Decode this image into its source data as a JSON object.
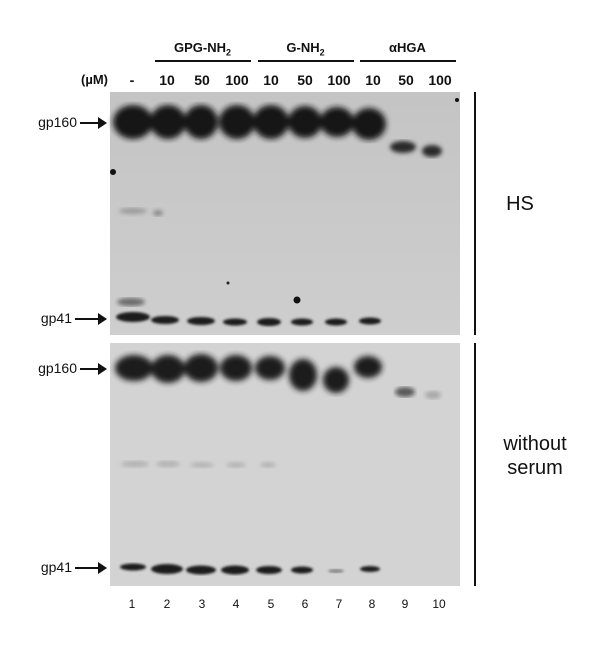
{
  "header": {
    "groups": [
      "GPG-NH2",
      "G-NH2",
      "αHGA"
    ],
    "unit": "(µM)",
    "concentrations": [
      "-",
      "10",
      "50",
      "100",
      "10",
      "50",
      "100",
      "10",
      "50",
      "100"
    ]
  },
  "bands": {
    "gp160": "gp160",
    "gp41": "gp41"
  },
  "lanes": [
    "1",
    "2",
    "3",
    "4",
    "5",
    "6",
    "7",
    "8",
    "9",
    "10"
  ],
  "panels": [
    {
      "label": "HS"
    },
    {
      "label_line1": "without",
      "label_line2": "serum"
    }
  ]
}
